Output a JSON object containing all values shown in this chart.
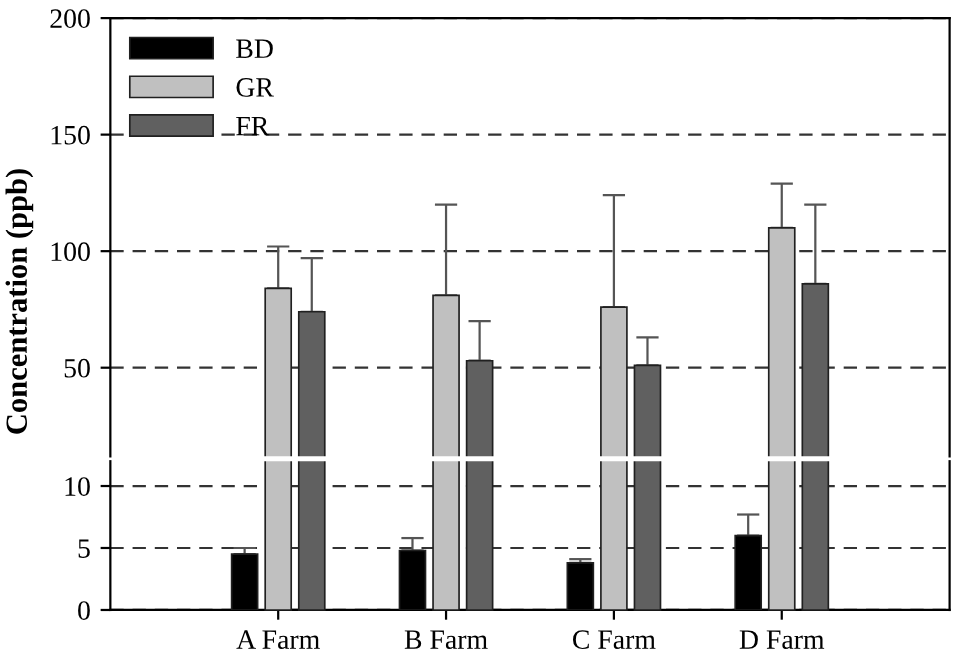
{
  "chart_data": [
    {
      "type": "bar",
      "ylabel": "Concentration (ppb)",
      "categories": [
        null,
        null,
        null,
        null
      ],
      "tick_labels": "y",
      "ylim": [
        12,
        200
      ],
      "yticks": [
        50,
        100,
        150,
        200
      ],
      "grid": "y",
      "legend": "top left",
      "series": [
        {
          "name": "BD",
          "color": "#000000",
          "values": [
            null,
            null,
            null,
            null
          ]
        },
        {
          "name": "GR",
          "color": "#c0c0c0",
          "values": [
            84,
            81,
            76,
            110
          ],
          "errors": [
            [
              84,
              102
            ],
            [
              81,
              120
            ],
            [
              76,
              124
            ],
            [
              110,
              129
            ]
          ]
        },
        {
          "name": "FR",
          "color": "#606060",
          "values": [
            74,
            53,
            51,
            86
          ],
          "errors": [
            [
              74,
              97
            ],
            [
              53,
              70
            ],
            [
              51,
              63
            ],
            [
              86,
              120
            ]
          ]
        }
      ]
    },
    {
      "type": "bar",
      "categories": [
        "A Farm",
        "B Farm",
        "C Farm",
        "D Farm"
      ],
      "ylim": [
        0,
        12
      ],
      "yticks": [
        0,
        5,
        10
      ],
      "grid": "y",
      "series": [
        {
          "color": "#000000",
          "values": [
            4.5,
            4.8,
            3.8,
            6.0
          ],
          "errors": [
            [
              4.5,
              5.0
            ],
            [
              4.8,
              5.8
            ],
            [
              3.8,
              4.1
            ],
            [
              6.0,
              7.7
            ]
          ]
        }
      ]
    }
  ]
}
